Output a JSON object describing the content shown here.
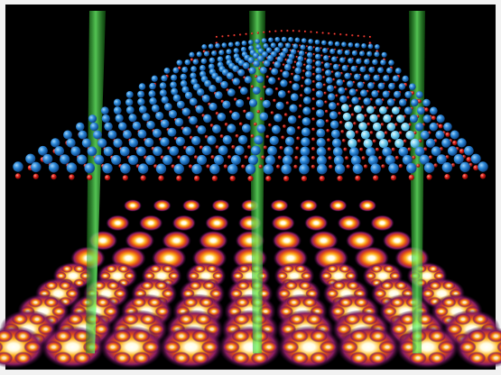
{
  "figure": {
    "kind": "scientific-illustration",
    "subject": "atomic-lattice-with-diffraction-pattern",
    "colors": {
      "frame": "#f2f2f2",
      "background": "#000000",
      "lattice_atom": "#1f7fd0",
      "lattice_atom_highlight": "#7ad3f2",
      "edge_atom": "#d61b14",
      "beam": "#2fd02f",
      "spot_core": "#fffde0",
      "spot_mid": "#ffb21f",
      "spot_outer": "#c0306c"
    },
    "beam_count": 3
  }
}
